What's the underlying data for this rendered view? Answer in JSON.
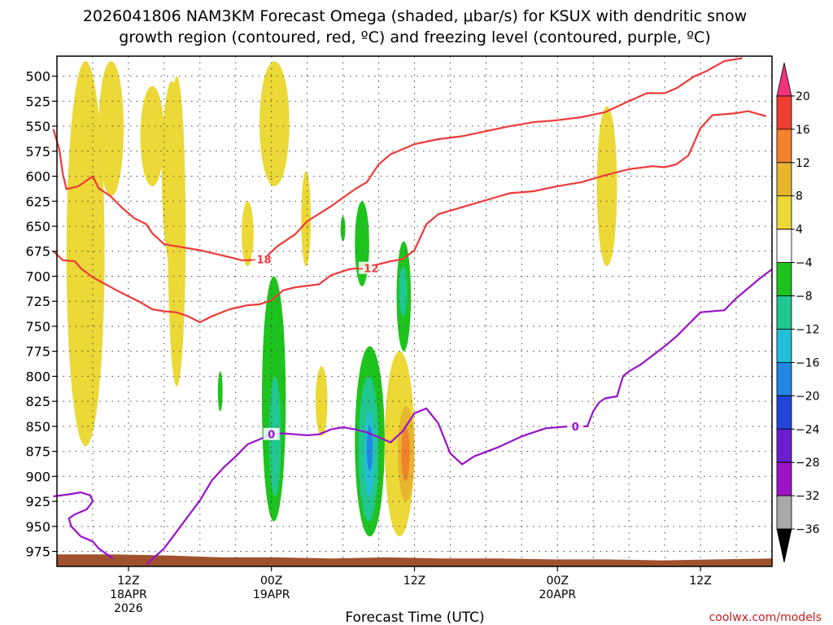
{
  "chart_data": {
    "type": "heatmap",
    "title_line1": "2026041806 NAM3KM Forecast Omega (shaded, μbar/s) for KSUX with dendritic snow",
    "title_line2": "growth region (contoured, red, ºC) and freezing level (contoured, purple, ºC)",
    "xlabel": "Forecast Time (UTC)",
    "credit": "coolwx.com/models",
    "x_range_hours": [
      0,
      60
    ],
    "y_range_mb": [
      480,
      990
    ],
    "y_ticks": [
      "500",
      "525",
      "550",
      "575",
      "600",
      "625",
      "650",
      "675",
      "700",
      "725",
      "750",
      "775",
      "800",
      "825",
      "850",
      "875",
      "900",
      "925",
      "950",
      "975"
    ],
    "y_tick_values": [
      500,
      525,
      550,
      575,
      600,
      625,
      650,
      675,
      700,
      725,
      750,
      775,
      800,
      825,
      850,
      875,
      900,
      925,
      950,
      975
    ],
    "x_ticks": [
      {
        "hour": 6,
        "line1": "12Z",
        "line2": "18APR",
        "line3": "2026"
      },
      {
        "hour": 18,
        "line1": "00Z",
        "line2": "19APR",
        "line3": ""
      },
      {
        "hour": 30,
        "line1": "12Z",
        "line2": "",
        "line3": ""
      },
      {
        "hour": 42,
        "line1": "00Z",
        "line2": "20APR",
        "line3": ""
      },
      {
        "hour": 54,
        "line1": "12Z",
        "line2": "",
        "line3": ""
      }
    ],
    "colorbar_labels": [
      "20",
      "16",
      "12",
      "8",
      "4",
      "−4",
      "−8",
      "−12",
      "−16",
      "−20",
      "−24",
      "−28",
      "−32",
      "−36"
    ],
    "colorbar_colors": [
      "#f0347a",
      "#ee3e32",
      "#f2822b",
      "#e7b530",
      "#ecd836",
      "#ffffff",
      "#1ec31e",
      "#22c690",
      "#22bfd6",
      "#2286e3",
      "#2244d8",
      "#6a1ed0",
      "#9c14c6",
      "#a8a8a8",
      "#000000"
    ],
    "dgz_contours": [
      {
        "label": "−18",
        "points": [
          [
            -0.3,
            553
          ],
          [
            0.2,
            573
          ],
          [
            0.5,
            598
          ],
          [
            0.8,
            613
          ],
          [
            1.8,
            610
          ],
          [
            3,
            600
          ],
          [
            3.5,
            612
          ],
          [
            4.5,
            620
          ],
          [
            5.5,
            632
          ],
          [
            6.5,
            642
          ],
          [
            7.5,
            648
          ],
          [
            8,
            657
          ],
          [
            9,
            668
          ],
          [
            10,
            670
          ],
          [
            12,
            674
          ],
          [
            14.5,
            681
          ],
          [
            15.5,
            684
          ],
          [
            16.5,
            684
          ]
        ]
      },
      {
        "label": "−18",
        "points": [
          [
            17.5,
            681
          ],
          [
            18.5,
            670
          ],
          [
            20,
            658
          ],
          [
            21,
            645
          ],
          [
            23,
            630
          ],
          [
            25,
            613
          ],
          [
            26,
            606
          ],
          [
            27,
            588
          ],
          [
            28,
            578
          ],
          [
            30,
            568
          ],
          [
            32,
            563
          ],
          [
            34,
            560
          ],
          [
            36,
            555
          ],
          [
            38,
            550
          ],
          [
            40,
            546
          ],
          [
            42,
            544
          ],
          [
            44,
            541
          ],
          [
            46,
            536
          ],
          [
            48,
            525
          ],
          [
            49.5,
            517
          ],
          [
            51,
            517
          ],
          [
            52,
            512
          ],
          [
            53.5,
            500
          ],
          [
            54.5,
            495
          ],
          [
            56,
            485
          ],
          [
            57.5,
            482
          ]
        ]
      },
      {
        "label": "−12",
        "points": [
          [
            -0.3,
            675
          ],
          [
            0.5,
            684
          ],
          [
            1.5,
            685
          ],
          [
            2,
            692
          ],
          [
            3,
            701
          ],
          [
            5,
            714
          ],
          [
            6,
            720
          ],
          [
            7,
            726
          ],
          [
            8,
            733
          ],
          [
            9,
            735
          ],
          [
            10,
            736
          ],
          [
            11,
            740
          ],
          [
            12,
            746
          ],
          [
            13,
            740
          ],
          [
            14.5,
            733
          ],
          [
            16,
            729
          ],
          [
            17,
            728
          ],
          [
            18,
            724
          ],
          [
            19,
            714
          ],
          [
            20,
            711
          ],
          [
            22,
            708
          ],
          [
            23,
            699
          ],
          [
            24.5,
            693
          ],
          [
            26,
            691
          ],
          [
            27,
            688
          ],
          [
            28,
            685
          ],
          [
            29,
            683
          ],
          [
            30,
            674
          ],
          [
            31,
            648
          ],
          [
            32,
            638
          ],
          [
            34,
            631
          ],
          [
            36,
            624
          ],
          [
            38,
            617
          ],
          [
            40,
            615
          ],
          [
            42,
            610
          ],
          [
            44,
            606
          ],
          [
            46,
            599
          ],
          [
            48,
            593
          ],
          [
            50,
            590
          ],
          [
            51,
            591
          ],
          [
            52,
            588
          ],
          [
            53,
            579
          ],
          [
            54,
            552
          ],
          [
            55,
            539
          ],
          [
            56,
            538
          ],
          [
            57,
            537
          ],
          [
            58,
            535
          ],
          [
            59.5,
            540
          ]
        ]
      }
    ],
    "freezing_contours": [
      {
        "label": "0",
        "points": [
          [
            -0.3,
            920
          ],
          [
            1,
            918
          ],
          [
            2,
            916
          ],
          [
            2.8,
            919
          ],
          [
            3,
            925
          ],
          [
            2.5,
            933
          ],
          [
            1.5,
            938
          ],
          [
            1,
            942
          ],
          [
            1.2,
            950
          ],
          [
            2,
            960
          ],
          [
            3,
            965
          ],
          [
            3.5,
            972
          ],
          [
            4.2,
            978
          ],
          [
            4.7,
            982
          ]
        ]
      },
      {
        "label": "0",
        "points": [
          [
            7.5,
            988
          ],
          [
            9,
            972
          ],
          [
            10,
            956
          ],
          [
            11,
            940
          ],
          [
            12,
            924
          ],
          [
            13,
            904
          ],
          [
            14,
            891
          ],
          [
            15,
            880
          ],
          [
            16,
            868
          ],
          [
            17,
            863
          ],
          [
            18,
            858
          ],
          [
            19,
            857
          ],
          [
            20,
            858
          ],
          [
            21,
            859
          ],
          [
            22,
            858
          ],
          [
            23,
            853
          ],
          [
            24,
            851
          ],
          [
            25,
            853
          ],
          [
            26,
            856
          ],
          [
            27,
            861
          ],
          [
            28,
            866
          ],
          [
            29,
            855
          ],
          [
            30,
            837
          ],
          [
            31,
            832
          ],
          [
            32,
            847
          ],
          [
            33,
            877
          ],
          [
            34,
            888
          ],
          [
            35,
            880
          ],
          [
            37,
            871
          ],
          [
            39,
            860
          ],
          [
            41,
            852
          ],
          [
            43,
            850
          ],
          [
            44.5,
            850
          ],
          [
            45,
            835
          ],
          [
            45.5,
            826
          ],
          [
            46,
            822
          ],
          [
            47,
            820
          ],
          [
            47.5,
            800
          ],
          [
            48,
            795
          ],
          [
            49,
            788
          ],
          [
            50,
            779
          ],
          [
            51,
            770
          ],
          [
            52,
            760
          ],
          [
            53,
            748
          ],
          [
            54,
            736
          ],
          [
            56,
            734
          ],
          [
            57,
            722
          ],
          [
            58,
            712
          ],
          [
            59,
            702
          ],
          [
            60,
            693
          ]
        ]
      }
    ],
    "terrain_top_mb": [
      978,
      978,
      979,
      981,
      981,
      982,
      981,
      982,
      982,
      983,
      983,
      984,
      983,
      982
    ],
    "omega_regions": [
      {
        "value": 4,
        "hours": [
          0.8,
          4.0
        ],
        "mb": [
          485,
          870
        ]
      },
      {
        "value": 4,
        "hours": [
          3.5,
          5.6
        ],
        "mb": [
          485,
          620
        ]
      },
      {
        "value": 4,
        "hours": [
          7.0,
          9.0
        ],
        "mb": [
          510,
          610
        ]
      },
      {
        "value": 4,
        "hours": [
          8.8,
          10.5
        ],
        "mb": [
          505,
          690
        ]
      },
      {
        "value": 4,
        "hours": [
          9.3,
          10.8
        ],
        "mb": [
          500,
          810
        ]
      },
      {
        "value": 4,
        "hours": [
          17.0,
          19.5
        ],
        "mb": [
          485,
          610
        ]
      },
      {
        "value": 4,
        "hours": [
          15.5,
          16.5
        ],
        "mb": [
          625,
          690
        ]
      },
      {
        "value": 4,
        "hours": [
          20.5,
          21.3
        ],
        "mb": [
          595,
          690
        ]
      },
      {
        "value": 4,
        "hours": [
          21.7,
          22.7
        ],
        "mb": [
          790,
          860
        ]
      },
      {
        "value": 4,
        "hours": [
          27.5,
          30.0
        ],
        "mb": [
          775,
          960
        ]
      },
      {
        "value": 4,
        "hours": [
          45.3,
          47.0
        ],
        "mb": [
          530,
          690
        ]
      },
      {
        "value": -4,
        "hours": [
          17.2,
          19.2
        ],
        "mb": [
          700,
          945
        ]
      },
      {
        "value": -4,
        "hours": [
          13.5,
          13.9
        ],
        "mb": [
          795,
          835
        ]
      },
      {
        "value": -4,
        "hours": [
          25.0,
          26.2
        ],
        "mb": [
          625,
          710
        ]
      },
      {
        "value": -4,
        "hours": [
          23.8,
          24.2
        ],
        "mb": [
          640,
          665
        ]
      },
      {
        "value": -4,
        "hours": [
          25.0,
          27.5
        ],
        "mb": [
          770,
          960
        ]
      },
      {
        "value": -4,
        "hours": [
          28.5,
          29.7
        ],
        "mb": [
          665,
          775
        ]
      },
      {
        "value": -8,
        "hours": [
          17.8,
          18.8
        ],
        "mb": [
          800,
          920
        ]
      },
      {
        "value": -8,
        "hours": [
          25.3,
          27.0
        ],
        "mb": [
          800,
          945
        ]
      },
      {
        "value": -8,
        "hours": [
          28.7,
          29.4
        ],
        "mb": [
          690,
          740
        ]
      },
      {
        "value": -12,
        "hours": [
          25.8,
          26.6
        ],
        "mb": [
          835,
          920
        ]
      },
      {
        "value": -16,
        "hours": [
          26.0,
          26.5
        ],
        "mb": [
          850,
          895
        ]
      },
      {
        "value": 8,
        "hours": [
          28.6,
          30.0
        ],
        "mb": [
          830,
          925
        ]
      },
      {
        "value": 12,
        "hours": [
          28.9,
          29.6
        ],
        "mb": [
          850,
          905
        ]
      }
    ]
  }
}
